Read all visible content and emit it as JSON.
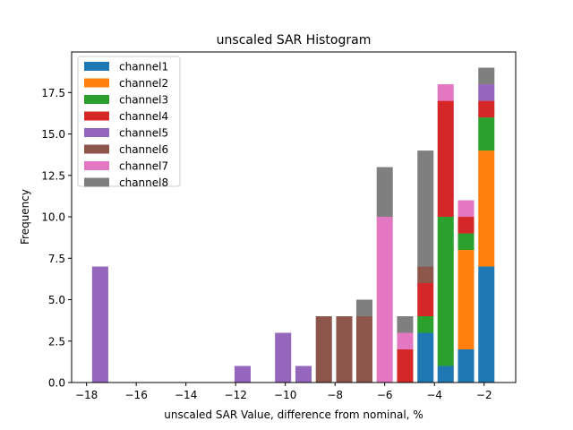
{
  "chart_data": {
    "type": "bar",
    "stacked": true,
    "title": "unscaled SAR Histogram",
    "xlabel": "unscaled SAR Value, difference from nominal, %",
    "ylabel": "Frequency",
    "xlim": [
      -18.6,
      -0.73
    ],
    "ylim": [
      0,
      19.95
    ],
    "xticks": [
      -18,
      -16,
      -14,
      -12,
      -10,
      -8,
      -6,
      -4,
      -2
    ],
    "xtick_labels": [
      "−18",
      "−16",
      "−14",
      "−12",
      "−10",
      "−8",
      "−6",
      "−4",
      "−2"
    ],
    "yticks": [
      0,
      2.5,
      5,
      7.5,
      10,
      12.5,
      15,
      17.5
    ],
    "ytick_labels": [
      "0.0",
      "2.5",
      "5.0",
      "7.5",
      "10.0",
      "12.5",
      "15.0",
      "17.5"
    ],
    "grid": false,
    "legend_position": "top-left",
    "bin_width": 0.65,
    "x": [
      -17.45,
      -16.63,
      -15.81,
      -14.99,
      -14.18,
      -13.36,
      -12.54,
      -11.72,
      -10.91,
      -10.09,
      -9.27,
      -8.45,
      -7.63,
      -6.82,
      -6.0,
      -5.18,
      -4.36,
      -3.55,
      -2.73,
      -1.91
    ],
    "series": [
      {
        "name": "channel1",
        "color": "#1f77b4",
        "values": [
          0,
          0,
          0,
          0,
          0,
          0,
          0,
          0,
          0,
          0,
          0,
          0,
          0,
          0,
          0,
          0,
          3,
          1,
          2,
          7
        ]
      },
      {
        "name": "channel2",
        "color": "#ff7f0e",
        "values": [
          0,
          0,
          0,
          0,
          0,
          0,
          0,
          0,
          0,
          0,
          0,
          0,
          0,
          0,
          0,
          0,
          0,
          0,
          6,
          7
        ]
      },
      {
        "name": "channel3",
        "color": "#2ca02c",
        "values": [
          0,
          0,
          0,
          0,
          0,
          0,
          0,
          0,
          0,
          0,
          0,
          0,
          0,
          0,
          0,
          0,
          1,
          9,
          1,
          2
        ]
      },
      {
        "name": "channel4",
        "color": "#d62728",
        "values": [
          0,
          0,
          0,
          0,
          0,
          0,
          0,
          0,
          0,
          0,
          0,
          0,
          0,
          0,
          0,
          2,
          2,
          7,
          1,
          1
        ]
      },
      {
        "name": "channel5",
        "color": "#9467bd",
        "values": [
          7,
          0,
          0,
          0,
          0,
          0,
          0,
          1,
          0,
          3,
          1,
          0,
          0,
          0,
          0,
          0,
          0,
          0,
          0,
          1
        ]
      },
      {
        "name": "channel6",
        "color": "#8c564b",
        "values": [
          0,
          0,
          0,
          0,
          0,
          0,
          0,
          0,
          0,
          0,
          0,
          4,
          4,
          4,
          0,
          0,
          1,
          0,
          0,
          0
        ]
      },
      {
        "name": "channel7",
        "color": "#e377c2",
        "values": [
          0,
          0,
          0,
          0,
          0,
          0,
          0,
          0,
          0,
          0,
          0,
          0,
          0,
          0,
          10,
          1,
          0,
          1,
          1,
          0
        ]
      },
      {
        "name": "channel8",
        "color": "#7f7f7f",
        "values": [
          0,
          0,
          0,
          0,
          0,
          0,
          0,
          0,
          0,
          0,
          0,
          0,
          0,
          1,
          3,
          1,
          7,
          0,
          0,
          1
        ]
      }
    ]
  }
}
